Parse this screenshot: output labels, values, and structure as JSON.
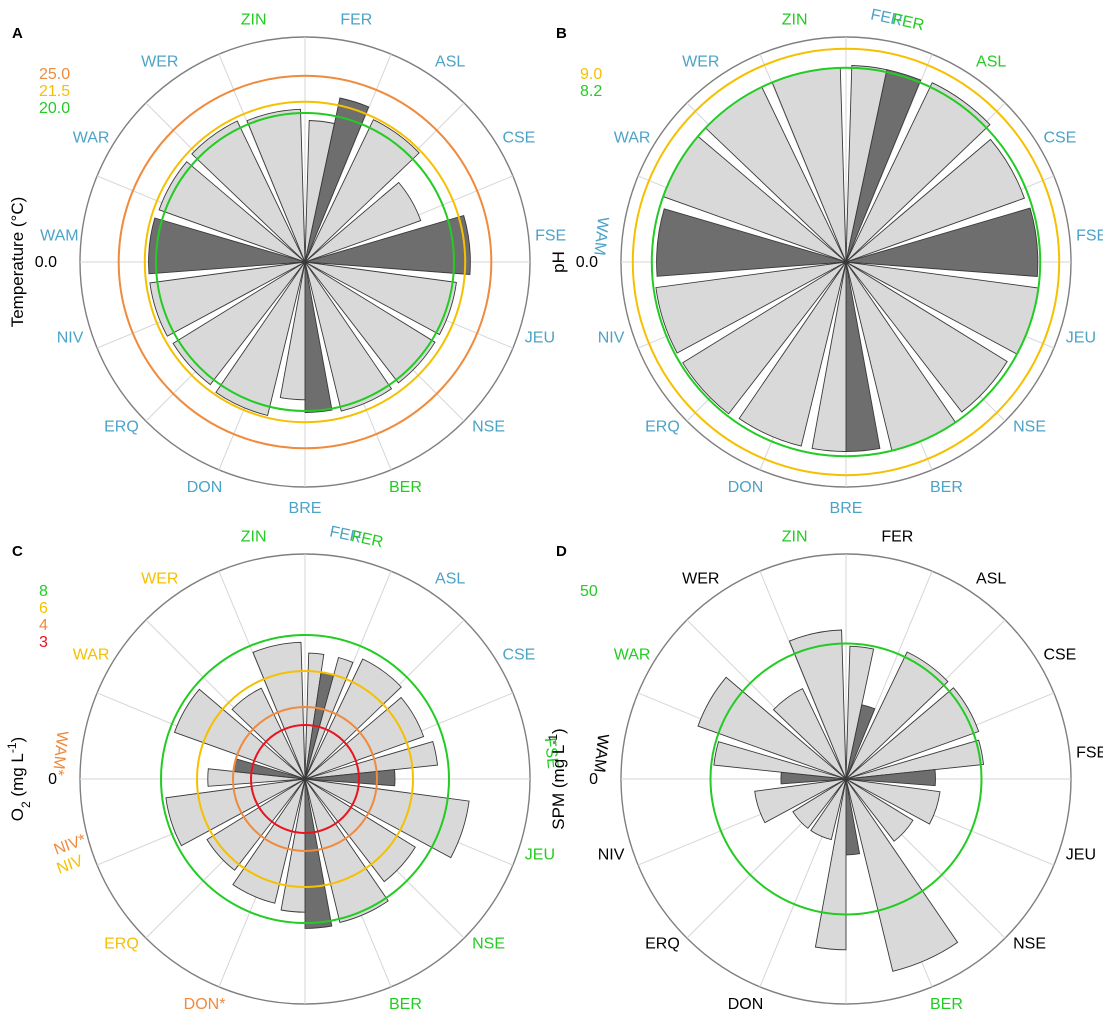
{
  "colors": {
    "blue_label": "#4ba3c7",
    "green": "#22cc22",
    "orange": "#f08a3c",
    "yellow": "#f5c000",
    "red": "#e8141e",
    "bar_fill": "#d9d9d9",
    "bar_dark": "#6e6e6e",
    "frame": "#7f7f7f",
    "grid": "#d6d6d6",
    "text": "#000000"
  },
  "chart_data": [
    {
      "type": "radial-bar",
      "panel": "A",
      "ylabel": "Temperature (°C)",
      "scale_max": 30.2,
      "min_label": "0.0",
      "thresholds": [
        {
          "value": 25.0,
          "label": "25.0",
          "color": "#f08a3c"
        },
        {
          "value": 21.5,
          "label": "21.5",
          "color": "#f5c000"
        },
        {
          "value": 20.0,
          "label": "20.0",
          "color": "#22cc22"
        }
      ],
      "categories": [
        {
          "label": "FER",
          "color": "#4ba3c7",
          "values": [
            19.0,
            22.5
          ],
          "dark": [
            false,
            true
          ]
        },
        {
          "label": "ASL",
          "color": "#4ba3c7",
          "values": [
            21.2
          ]
        },
        {
          "label": "CSE",
          "color": "#4ba3c7",
          "values": [
            16.5
          ]
        },
        {
          "label": "FSE",
          "color": "#4ba3c7",
          "values": [
            22.2
          ],
          "dark": [
            true
          ]
        },
        {
          "label": "JEU",
          "color": "#4ba3c7",
          "values": [
            20.5
          ]
        },
        {
          "label": "NSE",
          "color": "#4ba3c7",
          "values": [
            20.5
          ]
        },
        {
          "label": "BER",
          "color": "#22cc22",
          "values": [
            20.6
          ]
        },
        {
          "label": "BRE",
          "color": "#4ba3c7",
          "values": [
            20.2,
            18.5
          ],
          "dark": [
            true,
            false
          ]
        },
        {
          "label": "DON",
          "color": "#4ba3c7",
          "values": [
            21.2
          ]
        },
        {
          "label": "ERQ",
          "color": "#4ba3c7",
          "values": [
            20.8
          ]
        },
        {
          "label": "NIV",
          "color": "#4ba3c7",
          "values": [
            21.0
          ]
        },
        {
          "label": "WAM",
          "color": "#4ba3c7",
          "values": [
            21.0
          ],
          "dark": [
            true
          ]
        },
        {
          "label": "WAR",
          "color": "#4ba3c7",
          "values": [
            20.8
          ]
        },
        {
          "label": "WER",
          "color": "#4ba3c7",
          "values": [
            21.0
          ]
        },
        {
          "label": "ZIN",
          "color": "#22cc22",
          "values": [
            20.5
          ]
        }
      ]
    },
    {
      "type": "radial-bar",
      "panel": "B",
      "ylabel": "pH",
      "scale_max": 9.5,
      "min_label": "0.0",
      "thresholds": [
        {
          "value": 9.0,
          "label": "9.0",
          "color": "#f5c000"
        },
        {
          "value": 8.2,
          "label": "8.2",
          "color": "#22cc22"
        }
      ],
      "categories": [
        {
          "label": "FER",
          "color": "#4ba3c7",
          "values": [
            8.3
          ],
          "rotate": true
        },
        {
          "label": "FER",
          "color": "#22cc22",
          "values": [
            8.3
          ],
          "dark": [
            true
          ],
          "rotate": true
        },
        {
          "label": "ASL",
          "color": "#22cc22",
          "values": [
            8.4
          ]
        },
        {
          "label": "CSE",
          "color": "#4ba3c7",
          "values": [
            8.0
          ]
        },
        {
          "label": "FSE",
          "color": "#4ba3c7",
          "values": [
            8.1
          ],
          "dark": [
            true
          ]
        },
        {
          "label": "JEU",
          "color": "#4ba3c7",
          "values": [
            8.2
          ]
        },
        {
          "label": "NSE",
          "color": "#4ba3c7",
          "values": [
            8.0
          ]
        },
        {
          "label": "BER",
          "color": "#4ba3c7",
          "values": [
            8.2
          ]
        },
        {
          "label": "BRE",
          "color": "#4ba3c7",
          "values": [
            8.0,
            8.0
          ],
          "dark": [
            true,
            false
          ]
        },
        {
          "label": "DON",
          "color": "#4ba3c7",
          "values": [
            8.0
          ]
        },
        {
          "label": "ERQ",
          "color": "#4ba3c7",
          "values": [
            8.1
          ]
        },
        {
          "label": "NIV",
          "color": "#4ba3c7",
          "values": [
            8.1
          ]
        },
        {
          "label": "WAM",
          "color": "#4ba3c7",
          "values": [
            8.0
          ],
          "dark": [
            true
          ],
          "rotate": true
        },
        {
          "label": "WAR",
          "color": "#4ba3c7",
          "values": [
            8.2
          ]
        },
        {
          "label": "WER",
          "color": "#4ba3c7",
          "values": [
            8.2
          ]
        },
        {
          "label": "ZIN",
          "color": "#22cc22",
          "values": [
            8.2
          ]
        }
      ]
    },
    {
      "type": "radial-bar",
      "panel": "C",
      "ylabel": "O",
      "ylabel_sub": "2",
      "ylabel_unit": " (mg L",
      "ylabel_sup": "-1",
      "ylabel_end": ")",
      "scale_max": 12.5,
      "min_label": "0",
      "thresholds": [
        {
          "value": 8,
          "label": "8",
          "color": "#22cc22"
        },
        {
          "value": 6,
          "label": "6",
          "color": "#f5c000"
        },
        {
          "value": 4,
          "label": "4",
          "color": "#f08a3c"
        },
        {
          "value": 3,
          "label": "3",
          "color": "#e8141e"
        }
      ],
      "categories": [
        {
          "label": "FER",
          "color": "#4ba3c7",
          "values": [
            7.0,
            6.0
          ],
          "dark": [
            false,
            true
          ],
          "rotate": true
        },
        {
          "label": "FER",
          "color": "#22cc22",
          "values": [
            7.0
          ],
          "rotate": true
        },
        {
          "label": "ASL",
          "color": "#4ba3c7",
          "values": [
            7.4
          ]
        },
        {
          "label": "CSE",
          "color": "#4ba3c7",
          "values": [
            7.0
          ]
        },
        {
          "label": "FSE",
          "color": "#22cc22",
          "values": [
            7.4,
            5.0
          ],
          "dark": [
            false,
            true
          ],
          "rotate": true
        },
        {
          "label": "JEU",
          "color": "#22cc22",
          "values": [
            9.2
          ]
        },
        {
          "label": "NSE",
          "color": "#22cc22",
          "values": [
            7.2
          ]
        },
        {
          "label": "BER",
          "color": "#22cc22",
          "values": [
            8.2
          ]
        },
        {
          "label": "BRE",
          "color": "#4ba3c7",
          "values": [
            8.3,
            7.4
          ],
          "dark": [
            true,
            false
          ]
        },
        {
          "label": "DON*",
          "color": "#f08a3c",
          "values": [
            7.1
          ]
        },
        {
          "label": "ERQ",
          "color": "#f5c000",
          "values": [
            6.4
          ]
        },
        {
          "label": "NIV",
          "color": "#f5c000",
          "labels2": "NIV*",
          "color2": "#f08a3c",
          "values": [
            7.8
          ]
        },
        {
          "label": "WAM*",
          "color": "#f08a3c",
          "values": [
            5.4,
            4.0
          ],
          "dark": [
            false,
            true
          ],
          "rotate": true
        },
        {
          "label": "WAR",
          "color": "#f5c000",
          "values": [
            7.7
          ]
        },
        {
          "label": "WER",
          "color": "#f5c000",
          "values": [
            5.6
          ]
        },
        {
          "label": "ZIN",
          "color": "#22cc22",
          "values": [
            7.6
          ]
        }
      ]
    },
    {
      "type": "radial-bar",
      "panel": "D",
      "ylabel": "SPM (mg L",
      "ylabel_sup": "-1",
      "ylabel_end": ")",
      "scale_max": 83,
      "min_label": "0",
      "thresholds": [
        {
          "value": 50,
          "label": "50",
          "color": "#22cc22"
        }
      ],
      "categories": [
        {
          "label": "FER",
          "color": "#000000",
          "values": [
            49.0,
            28.0
          ],
          "dark": [
            false,
            true
          ]
        },
        {
          "label": "ASL",
          "color": "#000000",
          "values": [
            52.0
          ]
        },
        {
          "label": "CSE",
          "color": "#000000",
          "values": [
            52.0
          ]
        },
        {
          "label": "FSE",
          "color": "#000000",
          "values": [
            51.0,
            33.0
          ],
          "dark": [
            false,
            true
          ]
        },
        {
          "label": "JEU",
          "color": "#000000",
          "values": [
            35.0
          ]
        },
        {
          "label": "NSE",
          "color": "#000000",
          "values": [
            29.0
          ]
        },
        {
          "label": "BER",
          "color": "#22cc22",
          "values": [
            73.0
          ]
        },
        {
          "label": "BRE",
          "color": "#000000",
          "values": [
            28.0,
            63.0
          ],
          "dark": [
            true,
            false
          ]
        },
        {
          "label": "DON",
          "color": "#000000",
          "values": [
            23.0
          ]
        },
        {
          "label": "ERQ",
          "color": "#000000",
          "values": [
            23.0
          ]
        },
        {
          "label": "NIV",
          "color": "#000000",
          "values": [
            34.0
          ]
        },
        {
          "label": "WAM",
          "color": "#000000",
          "values": [
            24.0,
            49.0
          ],
          "dark": [
            true,
            false
          ],
          "rotate": true
        },
        {
          "label": "WAR",
          "color": "#22cc22",
          "values": [
            58.0
          ]
        },
        {
          "label": "WER",
          "color": "#000000",
          "values": [
            37.0
          ]
        },
        {
          "label": "ZIN",
          "color": "#22cc22",
          "values": [
            55.0
          ]
        }
      ]
    }
  ]
}
